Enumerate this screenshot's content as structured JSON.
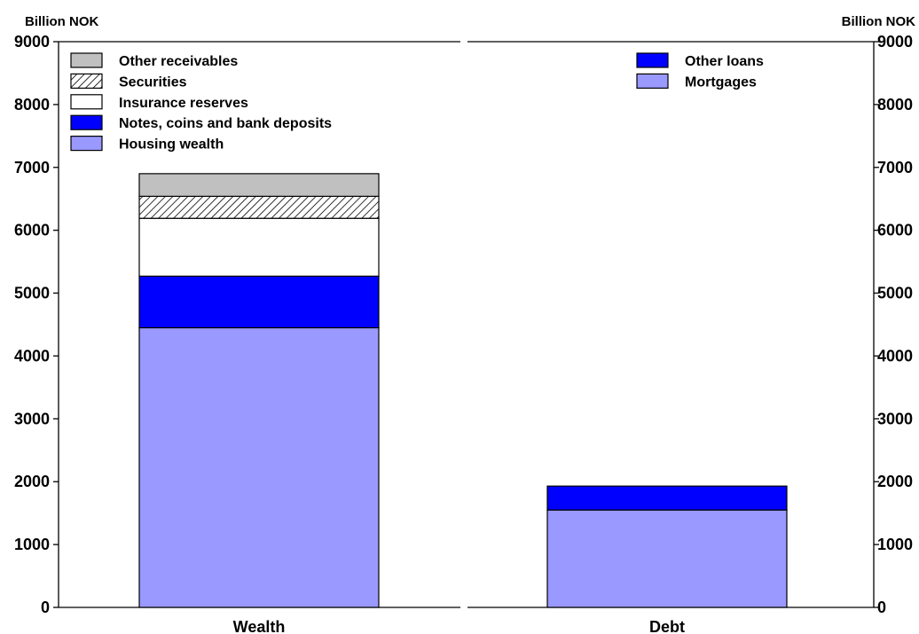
{
  "chart_data": {
    "type": "bar",
    "stacked": true,
    "unit_left": "Billion NOK",
    "unit_right": "Billion NOK",
    "ylim": [
      0,
      9000
    ],
    "yticks": [
      0,
      1000,
      2000,
      3000,
      4000,
      5000,
      6000,
      7000,
      8000,
      9000
    ],
    "grid": false,
    "panels": [
      {
        "category": "Wealth",
        "legend_position": "top-left",
        "series": [
          {
            "name": "Housing wealth",
            "value": 4450,
            "color": "#9999ff",
            "pattern": "solid"
          },
          {
            "name": "Notes, coins and bank deposits",
            "value": 820,
            "color": "#0000ff",
            "pattern": "solid"
          },
          {
            "name": "Insurance reserves",
            "value": 920,
            "color": "#ffffff",
            "pattern": "solid"
          },
          {
            "name": "Securities",
            "value": 350,
            "color": "#ffffff",
            "pattern": "hatched"
          },
          {
            "name": "Other receivables",
            "value": 360,
            "color": "#c0c0c0",
            "pattern": "solid"
          }
        ]
      },
      {
        "category": "Debt",
        "legend_position": "top-right",
        "series": [
          {
            "name": "Mortgages",
            "value": 1550,
            "color": "#9999ff",
            "pattern": "solid"
          },
          {
            "name": "Other loans",
            "value": 380,
            "color": "#0000ff",
            "pattern": "solid"
          }
        ]
      }
    ]
  }
}
